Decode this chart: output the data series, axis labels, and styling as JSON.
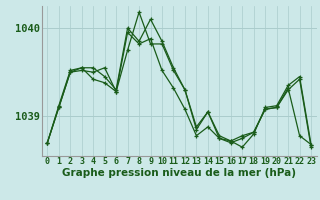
{
  "title": "Graphe pression niveau de la mer (hPa)",
  "background_color": "#cce8e8",
  "line_color": "#1a5c1a",
  "grid_color": "#aacccc",
  "yticks": [
    1039,
    1040
  ],
  "xlim": [
    -0.5,
    23.5
  ],
  "ylim": [
    1038.55,
    1040.25
  ],
  "series": [
    [
      1038.7,
      1039.1,
      1039.5,
      1039.55,
      1039.55,
      1039.45,
      1039.3,
      1040.0,
      1039.85,
      1040.1,
      1039.85,
      1039.55,
      1039.3,
      1038.88,
      1039.05,
      1038.78,
      1038.72,
      1038.65,
      1038.8,
      1039.1,
      1039.12,
      1039.35,
      1039.45,
      1038.68
    ],
    [
      1038.7,
      1039.1,
      1039.5,
      1039.52,
      1039.5,
      1039.55,
      1039.28,
      1039.75,
      1040.18,
      1039.82,
      1039.82,
      1039.52,
      1039.3,
      1038.85,
      1039.05,
      1038.75,
      1038.72,
      1038.78,
      1038.82,
      1039.08,
      1039.1,
      1039.32,
      1038.78,
      1038.68
    ],
    [
      1038.7,
      1039.12,
      1039.52,
      1039.55,
      1039.42,
      1039.38,
      1039.28,
      1039.95,
      1039.82,
      1039.88,
      1039.52,
      1039.32,
      1039.08,
      1038.78,
      1038.88,
      1038.75,
      1038.7,
      1038.75,
      1038.82,
      1039.08,
      1039.1,
      1039.3,
      1039.42,
      1038.65
    ]
  ],
  "title_fontsize": 7.5,
  "ylabel_fontsize": 7.5,
  "xlabel_fontsize": 6
}
